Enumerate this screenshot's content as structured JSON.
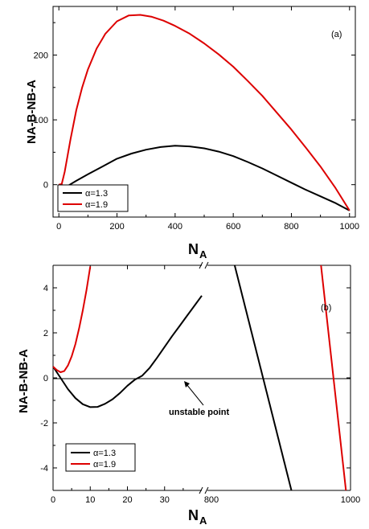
{
  "chart_data": [
    {
      "type": "line",
      "panel_label": "(a)",
      "xlabel_main": "N",
      "xlabel_sub": "A",
      "ylabel": "NA-B-NB-A",
      "xlim": [
        -20,
        1020
      ],
      "ylim": [
        -50,
        275
      ],
      "xticks": [
        0,
        200,
        400,
        600,
        800,
        1000
      ],
      "yticks": [
        0,
        100,
        200
      ],
      "series": [
        {
          "name": "α=1.3",
          "color": "#000000",
          "points": [
            [
              0,
              0
            ],
            [
              30,
              -2
            ],
            [
              60,
              6
            ],
            [
              100,
              16
            ],
            [
              150,
              28
            ],
            [
              200,
              40
            ],
            [
              250,
              48
            ],
            [
              300,
              54
            ],
            [
              350,
              58
            ],
            [
              400,
              60
            ],
            [
              450,
              59
            ],
            [
              500,
              56
            ],
            [
              550,
              51
            ],
            [
              600,
              44
            ],
            [
              650,
              35
            ],
            [
              700,
              25
            ],
            [
              750,
              14
            ],
            [
              800,
              3
            ],
            [
              850,
              -8
            ],
            [
              900,
              -18
            ],
            [
              950,
              -28
            ],
            [
              1000,
              -40
            ]
          ]
        },
        {
          "name": "α=1.9",
          "color": "#dd0000",
          "points": [
            [
              0,
              0
            ],
            [
              10,
              1
            ],
            [
              20,
              20
            ],
            [
              30,
              45
            ],
            [
              40,
              70
            ],
            [
              60,
              115
            ],
            [
              80,
              150
            ],
            [
              100,
              178
            ],
            [
              130,
              210
            ],
            [
              160,
              233
            ],
            [
              200,
              252
            ],
            [
              240,
              261
            ],
            [
              280,
              262
            ],
            [
              320,
              259
            ],
            [
              360,
              253
            ],
            [
              400,
              245
            ],
            [
              450,
              233
            ],
            [
              500,
              218
            ],
            [
              550,
              201
            ],
            [
              600,
              182
            ],
            [
              650,
              160
            ],
            [
              700,
              137
            ],
            [
              750,
              111
            ],
            [
              800,
              85
            ],
            [
              850,
              57
            ],
            [
              900,
              28
            ],
            [
              950,
              -4
            ],
            [
              1000,
              -40
            ]
          ]
        }
      ]
    },
    {
      "type": "line",
      "panel_label": "(b)",
      "xlabel_main": "N",
      "xlabel_sub": "A",
      "ylabel": "NA-B-NB-A",
      "ylim": [
        -5,
        5
      ],
      "yticks": [
        -4,
        -2,
        0,
        2,
        4
      ],
      "xticks_left": [
        0,
        10,
        20,
        30,
        800
      ],
      "xtick_right": 1000,
      "annotation": "unstable point",
      "series": [
        {
          "name": "α=1.3",
          "color": "#000000",
          "segment_left": [
            [
              0,
              0.5
            ],
            [
              2,
              0
            ],
            [
              4,
              -0.5
            ],
            [
              6,
              -0.9
            ],
            [
              8,
              -1.17
            ],
            [
              10,
              -1.3
            ],
            [
              12,
              -1.29
            ],
            [
              14,
              -1.15
            ],
            [
              16,
              -0.95
            ],
            [
              18,
              -0.67
            ],
            [
              20,
              -0.35
            ],
            [
              22,
              -0.08
            ],
            [
              24,
              0.1
            ],
            [
              26,
              0.45
            ],
            [
              28,
              0.9
            ],
            [
              30,
              1.38
            ],
            [
              32,
              1.85
            ],
            [
              34,
              2.3
            ],
            [
              36,
              2.75
            ],
            [
              38,
              3.2
            ],
            [
              40,
              3.65
            ]
          ],
          "segment_right": [
            [
              1.2,
              5
            ],
            [
              3.7,
              -5
            ]
          ]
        },
        {
          "name": "α=1.9",
          "color": "#dd0000",
          "segment_left": [
            [
              0,
              0.5
            ],
            [
              1,
              0.35
            ],
            [
              2,
              0.25
            ],
            [
              3,
              0.3
            ],
            [
              4,
              0.55
            ],
            [
              5,
              0.95
            ],
            [
              6,
              1.5
            ],
            [
              7,
              2.2
            ],
            [
              8,
              3
            ],
            [
              9,
              3.9
            ],
            [
              10,
              4.95
            ]
          ],
          "segment_right": [
            [
              5.0,
              5
            ],
            [
              6.1,
              -5
            ]
          ]
        }
      ]
    }
  ]
}
